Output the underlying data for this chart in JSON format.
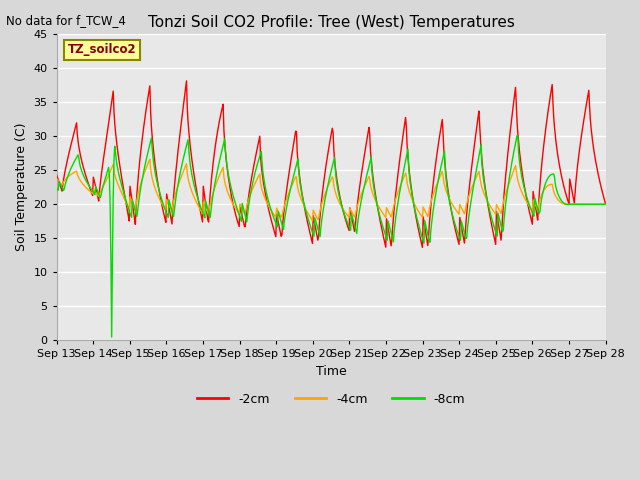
{
  "title": "Tonzi Soil CO2 Profile: Tree (West) Temperatures",
  "subtitle": "No data for f_TCW_4",
  "ylabel": "Soil Temperature (C)",
  "xlabel": "Time",
  "ylim": [
    0,
    45
  ],
  "xlim": [
    0,
    15
  ],
  "legend_box_label": "TZ_soilco2",
  "series": {
    "neg2cm": {
      "label": "-2cm",
      "color": "#ff0000"
    },
    "neg4cm": {
      "label": "-4cm",
      "color": "#ffa500"
    },
    "neg8cm": {
      "label": "-8cm",
      "color": "#00dd00"
    }
  },
  "x_tick_labels": [
    "Sep 13",
    "Sep 14",
    "Sep 15",
    "Sep 16",
    "Sep 17",
    "Sep 18",
    "Sep 19",
    "Sep 20",
    "Sep 21",
    "Sep 22",
    "Sep 23",
    "Sep 24",
    "Sep 25",
    "Sep 26",
    "Sep 27",
    "Sep 28"
  ],
  "yticks": [
    0,
    5,
    10,
    15,
    20,
    25,
    30,
    35,
    40,
    45
  ],
  "fig_bg": "#d8d8d8",
  "plot_bg": "#e8e8e8",
  "grid_color": "#ffffff",
  "title_fontsize": 11,
  "axis_fontsize": 9,
  "tick_fontsize": 8
}
